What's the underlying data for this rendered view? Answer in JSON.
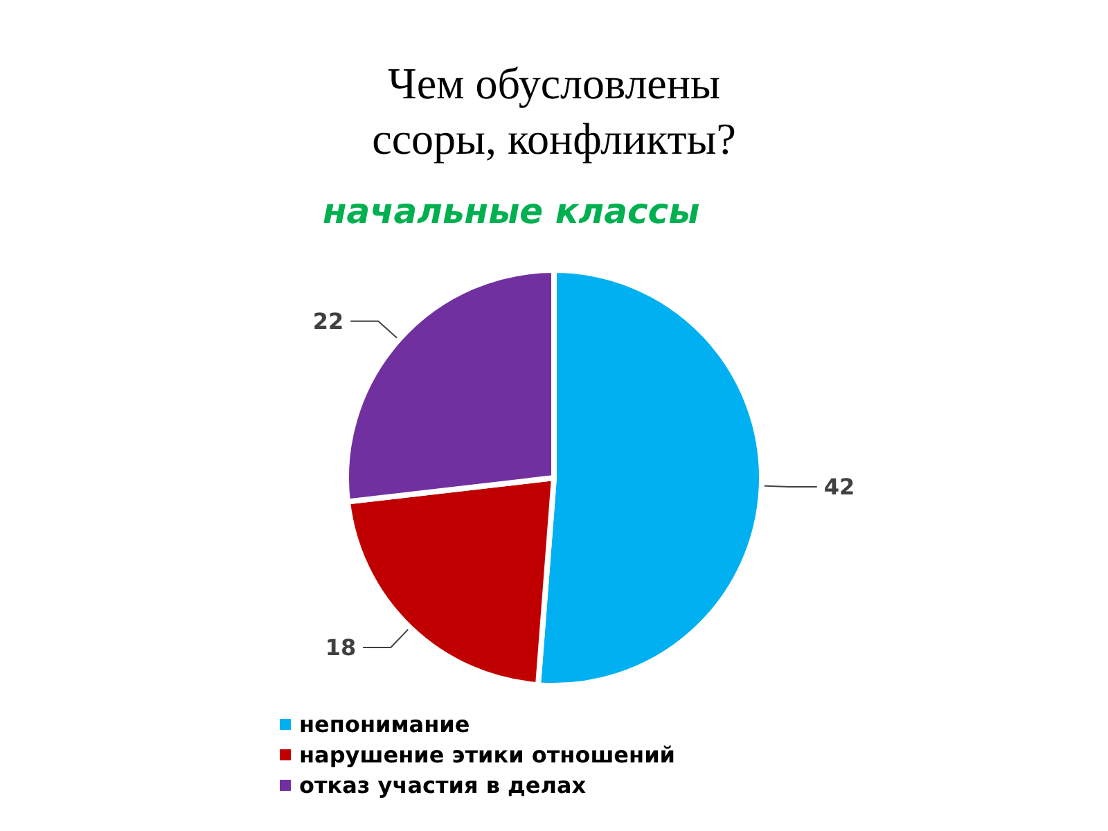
{
  "chart_data": {
    "type": "pie",
    "title": "Чем обусловлены\nссоры, конфликты?",
    "subtitle": "начальные классы",
    "categories": [
      "непонимание",
      "нарушение этики отношений",
      "отказ участия в делах"
    ],
    "values": [
      42,
      18,
      22
    ],
    "colors": [
      "#00b0f0",
      "#c00000",
      "#7030a0"
    ],
    "data_labels": true,
    "legend": "bottom"
  }
}
